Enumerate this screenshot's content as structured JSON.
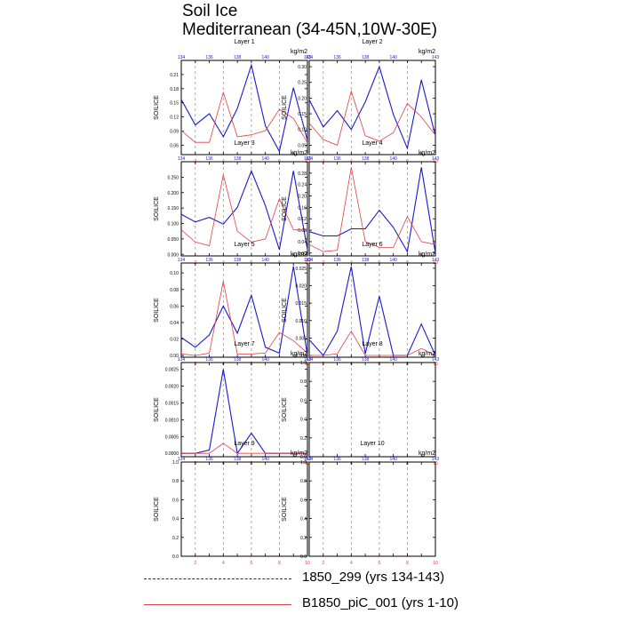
{
  "figure": {
    "title_line1": "Soil Ice",
    "title_line2": "Mediterranean (34-45N,10W-30E)"
  },
  "colors": {
    "series1": "#1a1ad0",
    "series2": "#e04040",
    "axis": "#000000",
    "grid": "#9a9a9a"
  },
  "legend": {
    "series1_label": "1850_299 (yrs 134-143)",
    "series2_label": "B1850_piC_001 (yrs 1-10)"
  },
  "chart_data": [
    {
      "type": "line",
      "title": "Layer 1",
      "ylabel": "SOILICE",
      "units": "kg/m2",
      "ylim": [
        0.04,
        0.24
      ],
      "yticks": [
        0.06,
        0.09,
        0.12,
        0.15,
        0.18,
        0.21
      ],
      "ytick_labels": [
        "0.06",
        "0.09",
        "0.12",
        "0.15",
        "0.18",
        "0.21"
      ],
      "x_bottom": [
        1,
        2,
        3,
        4,
        5,
        6,
        7,
        8,
        9,
        10
      ],
      "x_bottom_ticks": [
        "2",
        "4",
        "6",
        "8",
        "10"
      ],
      "x_top": [
        134,
        135,
        136,
        137,
        138,
        139,
        140,
        141,
        142,
        143
      ],
      "x_top_ticks": [
        "134",
        "136",
        "138",
        "140",
        "143"
      ],
      "series": [
        {
          "name": "1850_299 (yrs 134-143)",
          "values": [
            0.157,
            0.103,
            0.127,
            0.078,
            0.138,
            0.23,
            0.101,
            0.047,
            0.182,
            0.07
          ]
        },
        {
          "name": "B1850_piC_001 (yrs 1-10)",
          "values": [
            0.091,
            0.066,
            0.066,
            0.172,
            0.078,
            0.082,
            0.091,
            0.136,
            0.117,
            0.065
          ]
        }
      ]
    },
    {
      "type": "line",
      "title": "Layer 2",
      "ylabel": "SOILICE",
      "units": "kg/m2",
      "ylim": [
        0.02,
        0.32
      ],
      "yticks": [
        0.05,
        0.1,
        0.15,
        0.2,
        0.25,
        0.3
      ],
      "ytick_labels": [
        "0.05",
        "0.10",
        "0.15",
        "0.20",
        "0.25",
        "0.30"
      ],
      "x_bottom": [
        1,
        2,
        3,
        4,
        5,
        6,
        7,
        8,
        9,
        10
      ],
      "x_bottom_ticks": [
        "2",
        "4",
        "6",
        "8",
        "10"
      ],
      "x_top": [
        134,
        135,
        136,
        137,
        138,
        139,
        140,
        141,
        142,
        143
      ],
      "x_top_ticks": [
        "134",
        "136",
        "138",
        "140",
        "143"
      ],
      "series": [
        {
          "name": "1850_299 (yrs 134-143)",
          "values": [
            0.195,
            0.108,
            0.16,
            0.1,
            0.188,
            0.3,
            0.148,
            0.04,
            0.258,
            0.08
          ]
        },
        {
          "name": "B1850_piC_001 (yrs 1-10)",
          "values": [
            0.12,
            0.068,
            0.05,
            0.222,
            0.08,
            0.063,
            0.09,
            0.183,
            0.14,
            0.082
          ]
        }
      ]
    },
    {
      "type": "line",
      "title": "Layer 3",
      "ylabel": "SOILICE",
      "units": "kg/m2",
      "ylim": [
        -0.005,
        0.3
      ],
      "yticks": [
        0,
        0.05,
        0.1,
        0.15,
        0.2,
        0.25
      ],
      "ytick_labels": [
        "0.000",
        "0.050",
        "0.100",
        "0.150",
        "0.200",
        "0.250"
      ],
      "x_bottom": [
        1,
        2,
        3,
        4,
        5,
        6,
        7,
        8,
        9,
        10
      ],
      "x_bottom_ticks": [
        "2",
        "4",
        "6",
        "8",
        "10"
      ],
      "x_top": [
        134,
        135,
        136,
        137,
        138,
        139,
        140,
        141,
        142,
        143
      ],
      "x_top_ticks": [
        "134",
        "136",
        "138",
        "140",
        "143"
      ],
      "series": [
        {
          "name": "1850_299 (yrs 134-143)",
          "values": [
            0.13,
            0.105,
            0.12,
            0.098,
            0.152,
            0.27,
            0.158,
            0.015,
            0.27,
            0.015
          ]
        },
        {
          "name": "B1850_piC_001 (yrs 1-10)",
          "values": [
            0.08,
            0.04,
            0.028,
            0.258,
            0.075,
            0.04,
            0.05,
            0.18,
            0.08,
            0.078
          ]
        }
      ]
    },
    {
      "type": "line",
      "title": "Layer 4",
      "ylabel": "SOILICE",
      "units": "kg/m2",
      "ylim": [
        -0.01,
        0.32
      ],
      "yticks": [
        0,
        0.04,
        0.08,
        0.12,
        0.16,
        0.2,
        0.24,
        0.28
      ],
      "ytick_labels": [
        "0.00",
        "0.04",
        "0.08",
        "0.12",
        "0.16",
        "0.20",
        "0.24",
        "0.28"
      ],
      "x_bottom": [
        1,
        2,
        3,
        4,
        5,
        6,
        7,
        8,
        9,
        10
      ],
      "x_bottom_ticks": [
        "2",
        "4",
        "6",
        "8",
        "10"
      ],
      "x_top": [
        134,
        135,
        136,
        137,
        138,
        139,
        140,
        141,
        142,
        143
      ],
      "x_top_ticks": [
        "134",
        "136",
        "138",
        "140",
        "143"
      ],
      "series": [
        {
          "name": "1850_299 (yrs 134-143)",
          "values": [
            0.075,
            0.06,
            0.06,
            0.085,
            0.085,
            0.15,
            0.09,
            0.005,
            0.3,
            0.0
          ]
        },
        {
          "name": "B1850_piC_001 (yrs 1-10)",
          "values": [
            0.03,
            0.005,
            0.01,
            0.3,
            0.04,
            0.02,
            0.02,
            0.128,
            0.04,
            0.03
          ]
        }
      ]
    },
    {
      "type": "line",
      "title": "Layer 5",
      "ylabel": "SOILICE",
      "units": "kg/m2",
      "ylim": [
        -0.002,
        0.112
      ],
      "yticks": [
        0,
        0.02,
        0.04,
        0.06,
        0.08,
        0.1
      ],
      "ytick_labels": [
        "0.00",
        "0.02",
        "0.04",
        "0.06",
        "0.08",
        "0.10"
      ],
      "x_bottom": [
        1,
        2,
        3,
        4,
        5,
        6,
        7,
        8,
        9,
        10
      ],
      "x_bottom_ticks": [
        "2",
        "4",
        "6",
        "8",
        "10"
      ],
      "x_top": [
        134,
        135,
        136,
        137,
        138,
        139,
        140,
        141,
        142,
        143
      ],
      "x_top_ticks": [
        "134",
        "136",
        "138",
        "140",
        "143"
      ],
      "series": [
        {
          "name": "1850_299 (yrs 134-143)",
          "values": [
            0.022,
            0.01,
            0.025,
            0.06,
            0.027,
            0.073,
            0.01,
            0.003,
            0.108,
            0.0
          ]
        },
        {
          "name": "B1850_piC_001 (yrs 1-10)",
          "values": [
            0.002,
            0.0,
            0.003,
            0.09,
            0.002,
            0.002,
            0.003,
            0.028,
            0.018,
            0.003
          ]
        }
      ]
    },
    {
      "type": "line",
      "title": "Layer 6",
      "ylabel": "SOILICE",
      "units": "kg/m2",
      "ylim": [
        -0.0005,
        0.0265
      ],
      "yticks": [
        0,
        0.005,
        0.01,
        0.015,
        0.02,
        0.025
      ],
      "ytick_labels": [
        "0.000",
        "0.005",
        "0.010",
        "0.015",
        "0.020",
        "0.025"
      ],
      "x_bottom": [
        1,
        2,
        3,
        4,
        5,
        6,
        7,
        8,
        9,
        10
      ],
      "x_bottom_ticks": [
        "2",
        "4",
        "6",
        "8",
        "10"
      ],
      "x_top": [
        134,
        135,
        136,
        137,
        138,
        139,
        140,
        141,
        142,
        143
      ],
      "x_top_ticks": [
        "134",
        "136",
        "138",
        "140",
        "143"
      ],
      "series": [
        {
          "name": "1850_299 (yrs 134-143)",
          "values": [
            0.0045,
            0.0,
            0.007,
            0.0255,
            0.0005,
            0.017,
            0.0,
            0.0,
            0.009,
            0.0
          ]
        },
        {
          "name": "B1850_piC_001 (yrs 1-10)",
          "values": [
            0.0,
            0.0,
            0.0005,
            0.007,
            0.0,
            0.0,
            0.0,
            0.0,
            0.002,
            0.0
          ]
        }
      ]
    },
    {
      "type": "line",
      "title": "Layer 7",
      "ylabel": "SOILICE",
      "units": "kg/m2",
      "ylim": [
        -0.0001,
        0.0027
      ],
      "yticks": [
        0,
        0.0005,
        0.001,
        0.0015,
        0.002,
        0.0025
      ],
      "ytick_labels": [
        "0.0000",
        "0.0005",
        "0.0010",
        "0.0015",
        "0.0020",
        "0.0025"
      ],
      "x_bottom": [
        1,
        2,
        3,
        4,
        5,
        6,
        7,
        8,
        9,
        10
      ],
      "x_bottom_ticks": [
        "2",
        "4",
        "6",
        "8",
        "10"
      ],
      "x_top": [
        134,
        135,
        136,
        137,
        138,
        139,
        140,
        141,
        142,
        143
      ],
      "x_top_ticks": [
        "134",
        "136",
        "138",
        "140",
        "143"
      ],
      "series": [
        {
          "name": "1850_299 (yrs 134-143)",
          "values": [
            0.0,
            0.0,
            0.0001,
            0.0025,
            0.0,
            0.0006,
            0.0,
            0.0,
            0.0,
            0.0
          ]
        },
        {
          "name": "B1850_piC_001 (yrs 1-10)",
          "values": [
            0.0,
            0.0,
            0.0,
            0.0003,
            0.0,
            0.0,
            0.0,
            0.0,
            0.0,
            0.0
          ]
        }
      ]
    },
    {
      "type": "line",
      "title": "Layer 8",
      "ylabel": "SOILICE",
      "units": "kg/m2",
      "ylim": [
        0,
        1
      ],
      "yticks": [
        0,
        0.2,
        0.4,
        0.6,
        0.8,
        1.0
      ],
      "ytick_labels": [
        "0.0",
        "0.2",
        "0.4",
        "0.6",
        "0.8",
        "1.0"
      ],
      "x_bottom": [
        1,
        2,
        3,
        4,
        5,
        6,
        7,
        8,
        9,
        10
      ],
      "x_bottom_ticks": [
        "2",
        "4",
        "6",
        "8",
        "10"
      ],
      "x_top": [
        134,
        135,
        136,
        137,
        138,
        139,
        140,
        141,
        142,
        143
      ],
      "x_top_ticks": [
        "134",
        "136",
        "138",
        "140",
        "143"
      ],
      "series": []
    },
    {
      "type": "line",
      "title": "Layer 9",
      "ylabel": "SOILICE",
      "units": "kg/m2",
      "ylim": [
        0,
        1
      ],
      "yticks": [
        0,
        0.2,
        0.4,
        0.6,
        0.8,
        1.0
      ],
      "ytick_labels": [
        "0.0",
        "0.2",
        "0.4",
        "0.6",
        "0.8",
        "1.0"
      ],
      "x_bottom": [
        1,
        2,
        3,
        4,
        5,
        6,
        7,
        8,
        9,
        10
      ],
      "x_bottom_ticks": [
        "2",
        "4",
        "6",
        "8",
        "10"
      ],
      "x_top": [
        134,
        135,
        136,
        137,
        138,
        139,
        140,
        141,
        142,
        143
      ],
      "x_top_ticks": [
        "134",
        "136",
        "138",
        "140",
        "143"
      ],
      "series": []
    },
    {
      "type": "line",
      "title": "Layer 10",
      "ylabel": "SOILICE",
      "units": "kg/m2",
      "ylim": [
        0,
        1
      ],
      "yticks": [
        0,
        0.2,
        0.4,
        0.6,
        0.8,
        1.0
      ],
      "ytick_labels": [
        "0.0",
        "0.2",
        "0.4",
        "0.6",
        "0.8",
        "1.0"
      ],
      "x_bottom": [
        1,
        2,
        3,
        4,
        5,
        6,
        7,
        8,
        9,
        10
      ],
      "x_bottom_ticks": [
        "2",
        "4",
        "6",
        "8",
        "10"
      ],
      "x_top": [
        134,
        135,
        136,
        137,
        138,
        139,
        140,
        141,
        142,
        143
      ],
      "x_top_ticks": [
        "134",
        "136",
        "138",
        "140",
        "143"
      ],
      "series": []
    }
  ]
}
